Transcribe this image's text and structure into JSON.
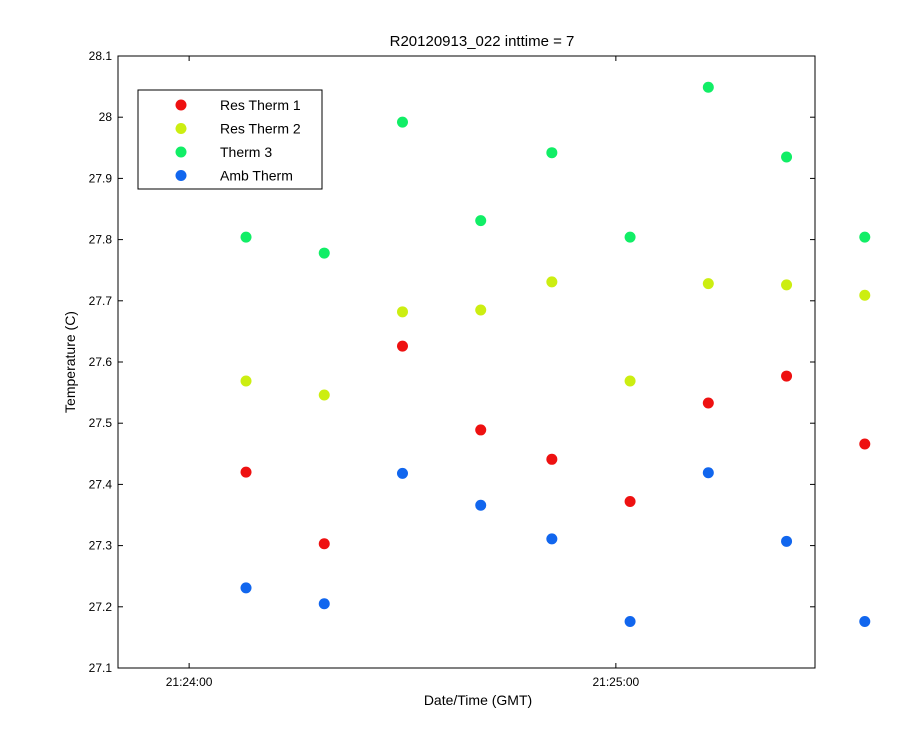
{
  "chart_data": {
    "type": "scatter",
    "title": "R20120913_022 inttime = 7",
    "xlabel": "Date/Time (GMT)",
    "ylabel": "Temperature (C)",
    "ylim": [
      27.1,
      28.1
    ],
    "y_ticks": [
      "27.1",
      "27.2",
      "27.3",
      "27.4",
      "27.5",
      "27.6",
      "27.7",
      "27.8",
      "27.9",
      "28",
      "28.1"
    ],
    "xlim_seconds": [
      -10,
      88
    ],
    "x_ticks": [
      {
        "label": "21:24:00",
        "seconds": 0
      },
      {
        "label": "21:25:00",
        "seconds": 60
      }
    ],
    "x_times": [
      "21:24:08",
      "21:24:19",
      "21:24:30",
      "21:24:41",
      "21:24:51",
      "21:25:02",
      "21:25:13",
      "21:25:24",
      "21:25:35"
    ],
    "legend_position": "top-left",
    "grid": false,
    "series": [
      {
        "name": "Res Therm 1",
        "color": "#ee1111",
        "values": [
          27.42,
          27.303,
          27.626,
          27.489,
          27.441,
          27.372,
          27.533,
          27.577,
          27.466
        ]
      },
      {
        "name": "Res Therm 2",
        "color": "#ccee11",
        "values": [
          27.569,
          27.546,
          27.682,
          27.685,
          27.731,
          27.569,
          27.728,
          27.726,
          27.709
        ]
      },
      {
        "name": "Therm 3",
        "color": "#11ee66",
        "values": [
          27.804,
          27.778,
          27.992,
          27.831,
          27.942,
          27.804,
          28.049,
          27.935,
          27.804
        ]
      },
      {
        "name": "Amb Therm",
        "color": "#1166ee",
        "values": [
          27.231,
          27.205,
          27.418,
          27.366,
          27.311,
          27.176,
          27.419,
          27.307,
          27.176
        ]
      }
    ]
  }
}
